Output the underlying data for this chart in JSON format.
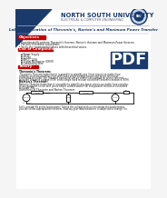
{
  "bg_color": "#f5f5f5",
  "page_bg": "#ffffff",
  "header_blue": "#1a3a6c",
  "header_banner_color": "#1e3f7a",
  "lab_title_text": "Lab 6: Verification of Thevenin's, Norton's and Maximum Power Transfer",
  "university_text": "NORTH SOUTH UNIVERSITY",
  "dept_text": "ELECTRICAL & COMPUTER ENGINEERING",
  "section_obj": "Objectives",
  "objectives": [
    "Experimentally perform Thevenin's theorem, Norton's theorem and Maximum Power theorem.",
    "Perform theoretical calculations.",
    "Verify the experimental values with theoretical values."
  ],
  "section_comp": "List of Components:",
  "components": [
    "Power Supply",
    "1K Ω",
    "2.2 kΩ",
    "PMD - 1208",
    "Digital Multimeter (DMM)",
    "Connecting Wire"
  ],
  "section_theory": "Theory",
  "thevenin_bold": "Thevenin's Theorem:",
  "thevenin_body": "Thevenin's Theorem states that it is possible to simplify any linear circuit, no matter how complex, to an equivalent circuit with just a single voltage source and series resistance connected to a load. The Thevenin equivalent circuit consists of a simple dc source referred to as the Thevenin voltage (VTH) and a single fixed resistor called the Thevenin resistance (RTH).",
  "norton_bold": "Norton's Theorem:",
  "norton_body": "Norton's Theorem states that it is possible to simplify any linear circuit, no matter how complex, to an equivalent circuit with just a simple current source (IN) and parallel resistance connected to a load (RN).",
  "usefulness_text": "Usefulness of Thevenin and Norton Theorem:",
  "bottom_text": "Let's consider RL as the load resistor. To find the voltage and current across this load resistor, you can follow superposition theorem. Now say your load resistance is subjected to change (i.e.",
  "pdf_text": "PDF",
  "text_color": "#111111",
  "red_section": "#c00000",
  "circuit_color": "#000000"
}
